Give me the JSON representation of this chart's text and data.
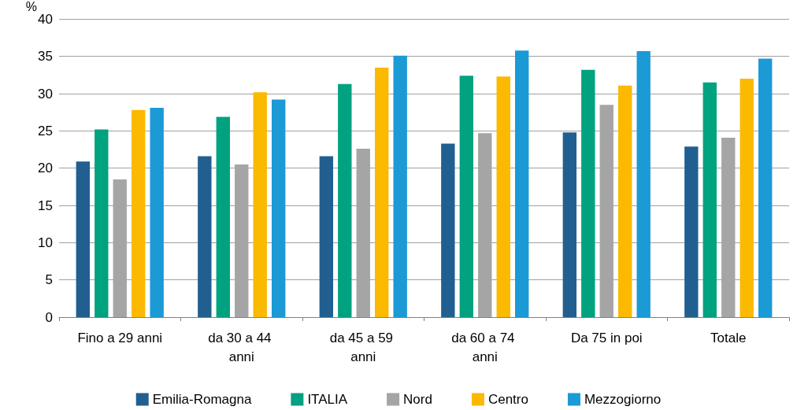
{
  "chart_data": {
    "type": "bar",
    "ylabel": "%",
    "categories": [
      "Fino a 29 anni",
      "da 30 a 44 anni",
      "da 45 a 59 anni",
      "da 60 a 74 anni",
      "Da 75 in poi",
      "Totale"
    ],
    "series": [
      {
        "name": "Emilia-Romagna",
        "color": "#215f91",
        "values": [
          20.9,
          21.6,
          21.6,
          23.3,
          24.8,
          22.9
        ]
      },
      {
        "name": "ITALIA",
        "color": "#00a27f",
        "values": [
          25.2,
          26.9,
          31.3,
          32.4,
          33.2,
          31.5
        ]
      },
      {
        "name": "Nord",
        "color": "#a5a5a5",
        "values": [
          18.5,
          20.5,
          22.6,
          24.7,
          28.5,
          24.1
        ]
      },
      {
        "name": "Centro",
        "color": "#fbb900",
        "values": [
          27.8,
          30.2,
          33.5,
          32.3,
          31.1,
          32.0
        ]
      },
      {
        "name": "Mezzogiorno",
        "color": "#1b9ad6",
        "values": [
          28.1,
          29.2,
          35.1,
          35.8,
          35.7,
          34.7
        ]
      }
    ],
    "ylim": [
      0,
      40
    ],
    "yticks": [
      0,
      5,
      10,
      15,
      20,
      25,
      30,
      35,
      40
    ],
    "grid": "y",
    "legend": "bottom"
  }
}
